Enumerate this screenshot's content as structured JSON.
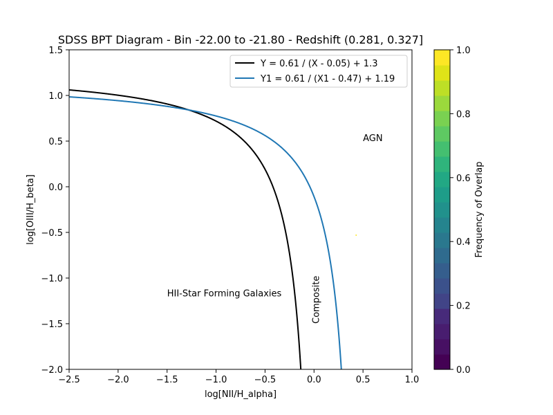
{
  "chart_data": {
    "type": "line",
    "title": "SDSS BPT Diagram - Bin -22.00 to -21.80 - Redshift (0.281, 0.327]",
    "xlabel": "log[NII/H_alpha]",
    "ylabel": "log[OIII/H_beta]",
    "xlim": [
      -2.5,
      1.0
    ],
    "ylim": [
      -2.0,
      1.5
    ],
    "xticks": [
      -2.5,
      -2.0,
      -1.5,
      -1.0,
      -0.5,
      0.0,
      0.5,
      1.0
    ],
    "xtick_labels": [
      "−2.5",
      "−2.0",
      "−1.5",
      "−1.0",
      "−0.5",
      "0.0",
      "0.5",
      "1.0"
    ],
    "yticks": [
      -2.0,
      -1.5,
      -1.0,
      -0.5,
      0.0,
      0.5,
      1.0,
      1.5
    ],
    "ytick_labels": [
      "−2.0",
      "−1.5",
      "−1.0",
      "−0.5",
      "0.0",
      "0.5",
      "1.0",
      "1.5"
    ],
    "grid": false,
    "legend_position": "top-right",
    "series": [
      {
        "name": "Y = 0.61 / (X - 0.05) + 1.3",
        "color": "#000000",
        "a": 0.61,
        "b": 0.05,
        "c": 1.3
      },
      {
        "name": "Y1 = 0.61 / (X1 - 0.47) + 1.19",
        "color": "#1f77b4",
        "a": 0.61,
        "b": 0.47,
        "c": 1.19
      }
    ],
    "points": [
      {
        "x": 0.43,
        "y": -0.53,
        "color": "#fde725"
      }
    ],
    "annotations": [
      {
        "text": "AGN",
        "x": 0.5,
        "y": 0.5,
        "rotation": 0
      },
      {
        "text": "HII-Star Forming Galaxies",
        "x": -1.5,
        "y": -1.2,
        "rotation": 0
      },
      {
        "text": "Composite",
        "x": 0.05,
        "y": -1.5,
        "rotation": -90
      }
    ],
    "colorbar": {
      "label": "Frequency of Overlap",
      "colormap": "viridis",
      "range": [
        0.0,
        1.0
      ],
      "ticks": [
        0.0,
        0.2,
        0.4,
        0.6,
        0.8,
        1.0
      ],
      "tick_labels": [
        "0.0",
        "0.2",
        "0.4",
        "0.6",
        "0.8",
        "1.0"
      ],
      "colors": [
        "#440154",
        "#471063",
        "#481d6f",
        "#472a7a",
        "#414487",
        "#3b518b",
        "#355e8d",
        "#2f6b8e",
        "#2a788e",
        "#25848e",
        "#21918c",
        "#1e9d89",
        "#22a884",
        "#2fb47c",
        "#44bf70",
        "#5ec962",
        "#7ad151",
        "#9bd93c",
        "#bddf26",
        "#dfe318",
        "#fde725"
      ]
    }
  }
}
